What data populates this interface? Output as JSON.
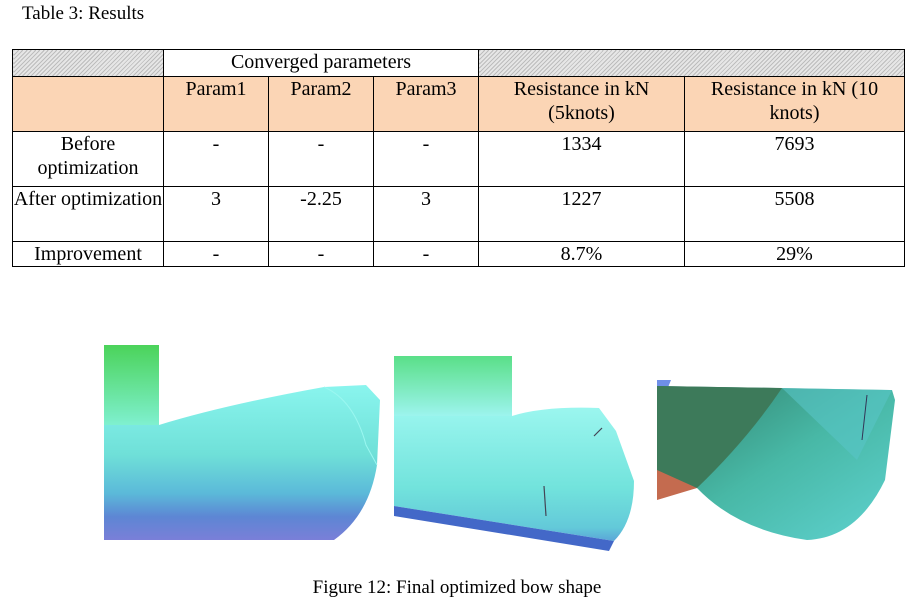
{
  "table_caption": "Table 3: Results",
  "table": {
    "group_header": "Converged parameters",
    "columns": [
      "Param1",
      "Param2",
      "Param3",
      "Resistance in kN (5knots)",
      "Resistance in kN (10 knots)"
    ],
    "rows": [
      {
        "label": "Before optimization",
        "values": [
          "-",
          "-",
          "-",
          "1334",
          "7693"
        ]
      },
      {
        "label": "After optimization",
        "values": [
          "3",
          "-2.25",
          "3",
          "1227",
          "5508"
        ]
      },
      {
        "label": "Improvement",
        "values": [
          "-",
          "-",
          "-",
          "8.7%",
          "29%"
        ]
      }
    ]
  },
  "figure_caption": "Figure 12: Final optimized bow shape",
  "colors": {
    "header_bg": "#fbd5b5",
    "hull_cyan": "#7ff0e6",
    "hull_blue": "#4a6fd0",
    "hull_green": "#56c85a"
  }
}
